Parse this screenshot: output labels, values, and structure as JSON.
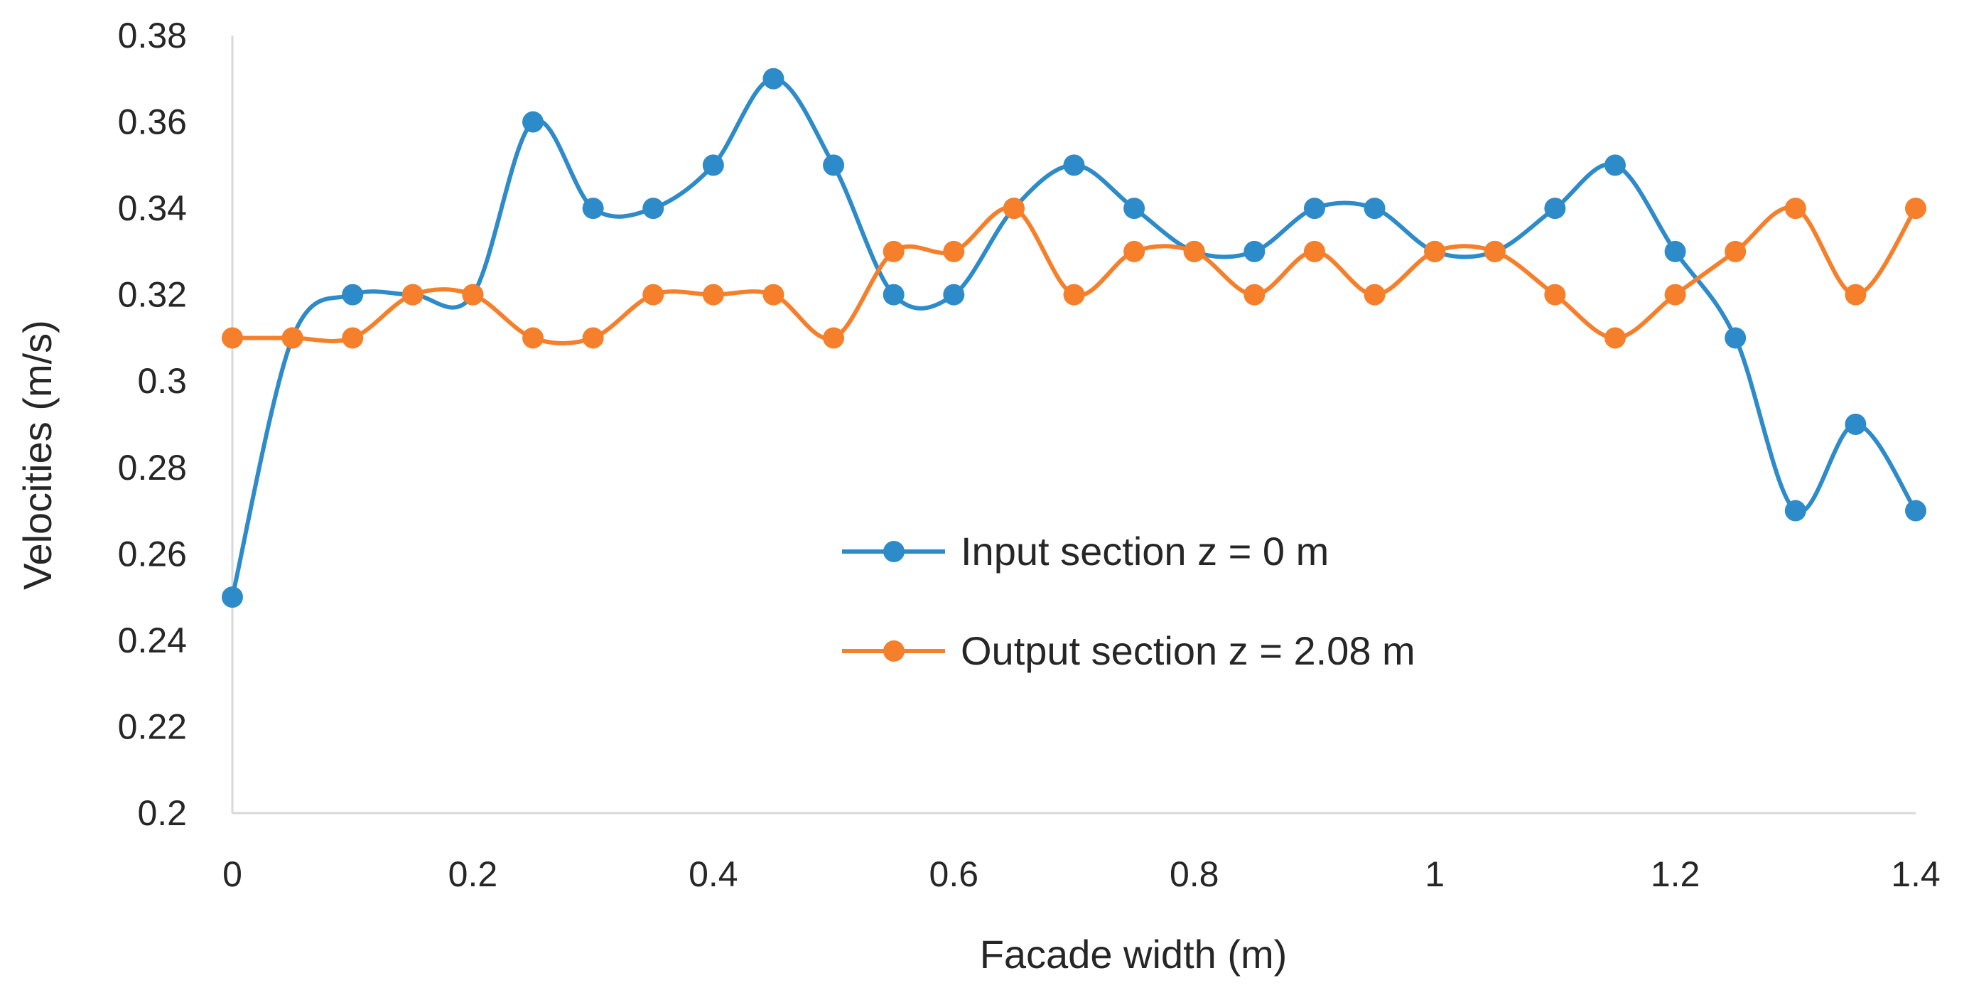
{
  "chart_data": {
    "type": "line",
    "title": "",
    "xlabel": "Facade width (m)",
    "ylabel": "Velocities (m/s)",
    "xlim": [
      0,
      1.4
    ],
    "ylim": [
      0.2,
      0.38
    ],
    "x_ticks": [
      "0",
      "0.2",
      "0.4",
      "0.6",
      "0.8",
      "1",
      "1.2",
      "1.4"
    ],
    "y_ticks": [
      "0.2",
      "0.22",
      "0.24",
      "0.26",
      "0.28",
      "0.3",
      "0.32",
      "0.34",
      "0.36",
      "0.38"
    ],
    "grid": false,
    "legend_position": "center-right",
    "x": [
      0,
      0.05,
      0.1,
      0.15,
      0.2,
      0.25,
      0.3,
      0.35,
      0.4,
      0.45,
      0.5,
      0.55,
      0.6,
      0.65,
      0.7,
      0.75,
      0.8,
      0.85,
      0.9,
      0.95,
      1.0,
      1.05,
      1.1,
      1.15,
      1.2,
      1.25,
      1.3,
      1.35,
      1.4
    ],
    "series": [
      {
        "name": "Input section z = 0 m",
        "color": "#2E8BC9",
        "values": [
          0.25,
          0.31,
          0.32,
          0.32,
          0.32,
          0.36,
          0.34,
          0.34,
          0.35,
          0.37,
          0.35,
          0.32,
          0.32,
          0.34,
          0.35,
          0.34,
          0.33,
          0.33,
          0.34,
          0.34,
          0.33,
          0.33,
          0.34,
          0.35,
          0.33,
          0.31,
          0.27,
          0.29,
          0.27
        ]
      },
      {
        "name": "Output section z = 2.08 m",
        "color": "#F57F2A",
        "values": [
          0.31,
          0.31,
          0.31,
          0.32,
          0.32,
          0.31,
          0.31,
          0.32,
          0.32,
          0.32,
          0.31,
          0.33,
          0.33,
          0.34,
          0.32,
          0.33,
          0.33,
          0.32,
          0.33,
          0.32,
          0.33,
          0.33,
          0.32,
          0.31,
          0.32,
          0.33,
          0.34,
          0.32,
          0.34
        ]
      }
    ]
  }
}
